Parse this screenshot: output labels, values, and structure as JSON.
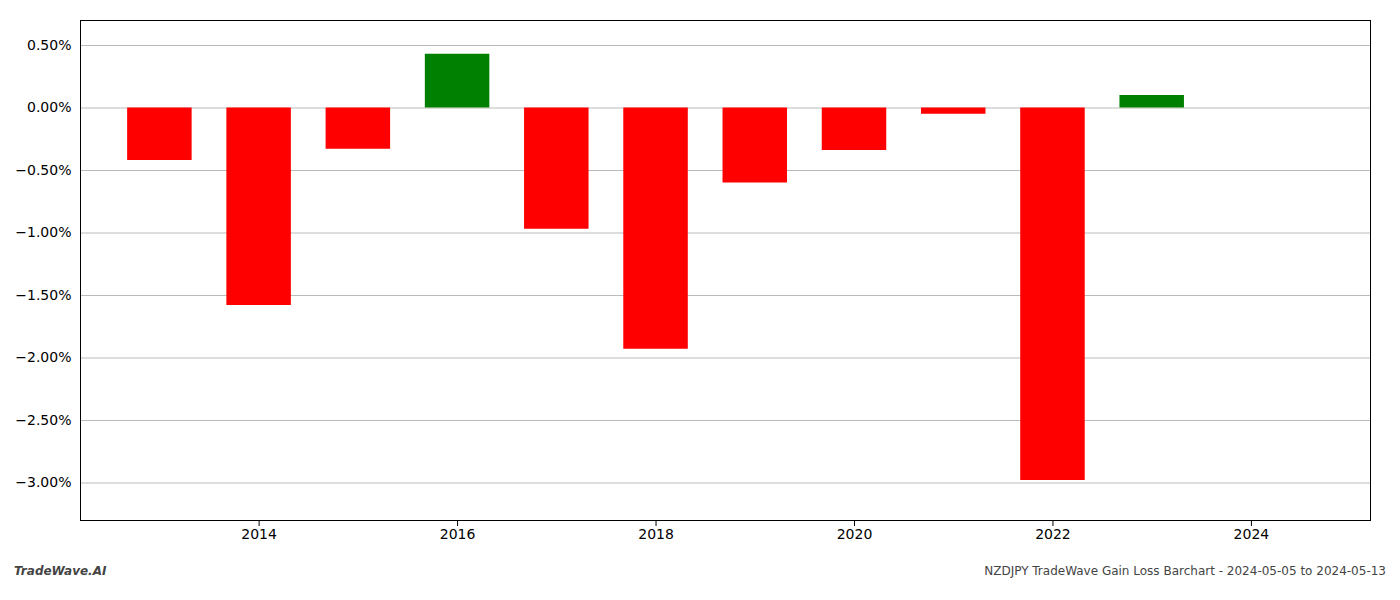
{
  "chart_data": {
    "type": "bar",
    "x": [
      2013,
      2014,
      2015,
      2016,
      2017,
      2018,
      2019,
      2020,
      2021,
      2022,
      2023
    ],
    "values": [
      -0.0042,
      -0.0158,
      -0.0033,
      0.0043,
      -0.0097,
      -0.0193,
      -0.006,
      -0.0034,
      -0.0005,
      -0.0298,
      0.001
    ],
    "colors": [
      "#ff0000",
      "#ff0000",
      "#ff0000",
      "#008000",
      "#ff0000",
      "#ff0000",
      "#ff0000",
      "#ff0000",
      "#ff0000",
      "#ff0000",
      "#008000"
    ],
    "xlim": [
      2012.2,
      2025.2
    ],
    "xticks": [
      2014,
      2016,
      2018,
      2020,
      2022,
      2024
    ],
    "ylim": [
      -0.033,
      0.007
    ],
    "yticks": [
      {
        "value": -0.03,
        "label": "−3.00%"
      },
      {
        "value": -0.025,
        "label": "−2.50%"
      },
      {
        "value": -0.02,
        "label": "−2.00%"
      },
      {
        "value": -0.015,
        "label": "−1.50%"
      },
      {
        "value": -0.01,
        "label": "−1.00%"
      },
      {
        "value": -0.005,
        "label": "−0.50%"
      },
      {
        "value": 0.0,
        "label": "0.00%"
      },
      {
        "value": 0.005,
        "label": "0.50%"
      }
    ],
    "grid": true,
    "annotations": [
      "TradeWave.AI",
      "NZDJPY TradeWave Gain Loss Barchart - 2024-05-05 to 2024-05-13"
    ]
  }
}
